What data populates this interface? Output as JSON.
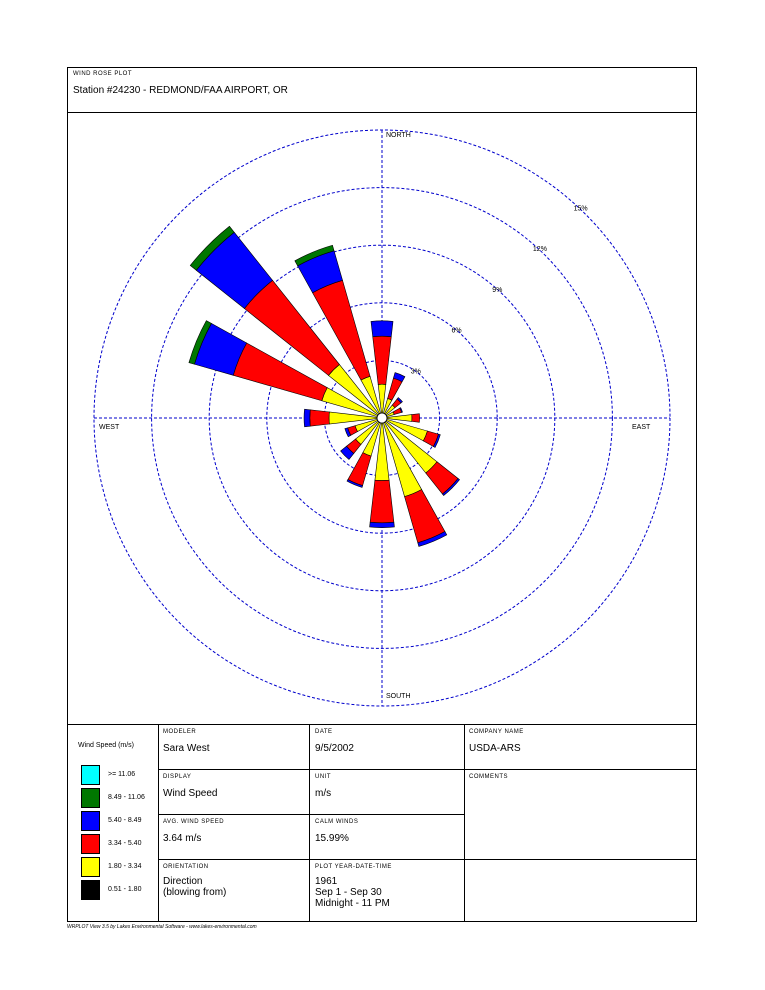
{
  "header": {
    "label": "WIND ROSE PLOT",
    "station": "Station #24230 - REDMOND/FAA AIRPORT, OR"
  },
  "chart_data": {
    "type": "wind-rose",
    "direction_labels": {
      "north": "NORTH",
      "south": "SOUTH",
      "east": "EAST",
      "west": "WEST"
    },
    "ring_labels": [
      "3%",
      "6%",
      "9%",
      "12%",
      "15%"
    ],
    "ring_values": [
      3,
      6,
      9,
      12,
      15
    ],
    "orientation": "blowing from",
    "sectors": 16,
    "speed_classes": [
      "0.51 - 1.80",
      "1.80 - 3.34",
      "3.34 - 5.40",
      "5.40 - 8.49",
      "8.49 - 11.06",
      ">= 11.06"
    ],
    "series": [
      {
        "direction": "N",
        "degrees": 0,
        "values": [
          0,
          1.5,
          2.5,
          0.8,
          0,
          0
        ]
      },
      {
        "direction": "NNE",
        "degrees": 22.5,
        "values": [
          0,
          0.8,
          1.1,
          0.3,
          0,
          0
        ]
      },
      {
        "direction": "NE",
        "degrees": 45,
        "values": [
          0,
          0.6,
          0.4,
          0.1,
          0,
          0
        ]
      },
      {
        "direction": "ENE",
        "degrees": 67.5,
        "values": [
          0,
          0.4,
          0.4,
          0.05,
          0,
          0
        ]
      },
      {
        "direction": "E",
        "degrees": 90,
        "values": [
          0,
          1.3,
          0.4,
          0,
          0,
          0
        ]
      },
      {
        "direction": "ESE",
        "degrees": 112.5,
        "values": [
          0,
          2.2,
          0.6,
          0.1,
          0,
          0
        ]
      },
      {
        "direction": "SE",
        "degrees": 135,
        "values": [
          0,
          3.4,
          1.4,
          0.1,
          0,
          0
        ]
      },
      {
        "direction": "SSE",
        "degrees": 157.5,
        "values": [
          0,
          4.0,
          2.5,
          0.2,
          0,
          0
        ]
      },
      {
        "direction": "S",
        "degrees": 180,
        "values": [
          0,
          3.0,
          2.2,
          0.25,
          0,
          0
        ]
      },
      {
        "direction": "SSW",
        "degrees": 202.5,
        "values": [
          0,
          1.8,
          1.6,
          0.1,
          0,
          0
        ]
      },
      {
        "direction": "SW",
        "degrees": 225,
        "values": [
          0,
          1.5,
          0.6,
          0.4,
          0,
          0
        ]
      },
      {
        "direction": "WSW",
        "degrees": 247.5,
        "values": [
          0,
          1.2,
          0.4,
          0.15,
          0,
          0
        ]
      },
      {
        "direction": "W",
        "degrees": 270,
        "values": [
          0,
          2.5,
          1.0,
          0.3,
          0,
          0
        ]
      },
      {
        "direction": "WNW",
        "degrees": 292.5,
        "values": [
          0,
          3.0,
          4.8,
          2.1,
          0.3,
          0
        ]
      },
      {
        "direction": "NW",
        "degrees": 315,
        "values": [
          0,
          3.3,
          5.6,
          3.2,
          0.4,
          0
        ]
      },
      {
        "direction": "NNW",
        "degrees": 337.5,
        "values": [
          0,
          2.0,
          5.2,
          1.6,
          0.3,
          0
        ]
      }
    ],
    "colors": [
      "#000000",
      "#ffff00",
      "#ff0000",
      "#0000ff",
      "#007700",
      "#00ffff"
    ],
    "grid": true
  },
  "legend": {
    "title": "Wind Speed (m/s)",
    "items": [
      {
        "label": ">= 11.06",
        "color": "#00ffff"
      },
      {
        "label": "8.49 - 11.06",
        "color": "#007700"
      },
      {
        "label": "5.40 - 8.49",
        "color": "#0000ff"
      },
      {
        "label": "3.34 - 5.40",
        "color": "#ff0000"
      },
      {
        "label": "1.80 - 3.34",
        "color": "#ffff00"
      },
      {
        "label": "0.51 - 1.80",
        "color": "#000000"
      }
    ]
  },
  "info": {
    "modeler_label": "MODELER",
    "modeler": "Sara West",
    "date_label": "DATE",
    "date": "9/5/2002",
    "company_label": "COMPANY NAME",
    "company": "USDA-ARS",
    "display_label": "DISPLAY",
    "display": "Wind Speed",
    "unit_label": "UNIT",
    "unit": "m/s",
    "comments_label": "COMMENTS",
    "avg_label": "AVG. WIND SPEED",
    "avg": "3.64 m/s",
    "calm_label": "CALM WINDS",
    "calm": "15.99%",
    "orientation_label": "ORIENTATION",
    "orientation": "Direction\n(blowing from)",
    "plot_label": "PLOT YEAR-DATE-TIME",
    "plot": "1961\nSep 1 - Sep 30\nMidnight - 11 PM"
  },
  "footer": "WRPLOT View 3.5 by Lakes Environmental Software - www.lakes-environmental.com"
}
